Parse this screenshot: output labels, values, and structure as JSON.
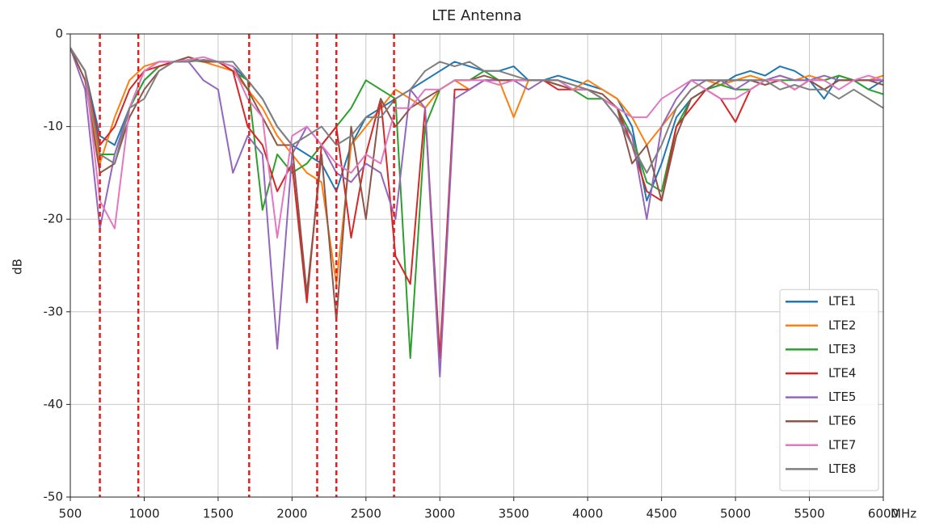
{
  "chart_data": {
    "type": "line",
    "title": "LTE Antenna",
    "xlabel": "MHz",
    "ylabel": "dB",
    "x": [
      500,
      600,
      700,
      800,
      900,
      1000,
      1100,
      1200,
      1300,
      1400,
      1500,
      1600,
      1700,
      1800,
      1900,
      2000,
      2100,
      2200,
      2300,
      2400,
      2500,
      2600,
      2700,
      2800,
      2900,
      3000,
      3100,
      3200,
      3300,
      3400,
      3500,
      3600,
      3700,
      3800,
      3900,
      4000,
      4100,
      4200,
      4300,
      4400,
      4500,
      4600,
      4700,
      4800,
      4900,
      5000,
      5100,
      5200,
      5300,
      5400,
      5500,
      5600,
      5700,
      5800,
      5900,
      6000
    ],
    "series": [
      {
        "name": "LTE1",
        "color": "#1f77b4",
        "values": [
          -1.5,
          -4,
          -11,
          -12,
          -8,
          -5,
          -3.5,
          -3,
          -3,
          -2.8,
          -3,
          -3.5,
          -5,
          -7,
          -10,
          -12,
          -13,
          -14,
          -17,
          -12,
          -9,
          -8,
          -7,
          -6,
          -5,
          -4,
          -3,
          -3.5,
          -4,
          -4,
          -3.5,
          -5,
          -5,
          -4.5,
          -5,
          -5.5,
          -6,
          -7,
          -10,
          -18,
          -14,
          -9,
          -7,
          -6,
          -5.5,
          -4.5,
          -4,
          -4.5,
          -3.5,
          -4,
          -5,
          -7,
          -4.5,
          -5,
          -6,
          -5
        ]
      },
      {
        "name": "LTE2",
        "color": "#ff7f0e",
        "values": [
          -1.5,
          -5,
          -14,
          -9,
          -5,
          -3.5,
          -3,
          -3,
          -2.8,
          -3,
          -3.5,
          -4,
          -6,
          -8,
          -11,
          -13,
          -15,
          -16,
          -27,
          -12,
          -10,
          -8,
          -6,
          -7,
          -8,
          -6,
          -5,
          -6,
          -5,
          -5,
          -9,
          -5,
          -5,
          -5.5,
          -6,
          -5,
          -6,
          -7,
          -9,
          -12,
          -10,
          -8,
          -6,
          -5,
          -5.5,
          -5,
          -4.5,
          -5,
          -4.5,
          -5,
          -4.5,
          -5,
          -4.5,
          -5,
          -5,
          -4.5
        ]
      },
      {
        "name": "LTE3",
        "color": "#2ca02c",
        "values": [
          -1.5,
          -4,
          -13,
          -13,
          -8,
          -5,
          -3.5,
          -3,
          -2.8,
          -3,
          -3,
          -4,
          -5,
          -19,
          -13,
          -15,
          -14,
          -12,
          -10,
          -8,
          -5,
          -6,
          -7,
          -35,
          -10,
          -6,
          -5,
          -5,
          -4,
          -5,
          -5,
          -5,
          -5,
          -5,
          -6,
          -7,
          -7,
          -8,
          -11,
          -16,
          -17,
          -10,
          -7,
          -6,
          -5.5,
          -6,
          -6,
          -5,
          -5,
          -5,
          -5,
          -5,
          -4.5,
          -5,
          -6,
          -6.5
        ]
      },
      {
        "name": "LTE4",
        "color": "#d62728",
        "values": [
          -1.5,
          -4,
          -12,
          -10,
          -6,
          -4,
          -3.5,
          -3,
          -2.5,
          -3,
          -3,
          -4,
          -10,
          -12,
          -17,
          -14,
          -29,
          -12,
          -10,
          -22,
          -13,
          -7,
          -24,
          -27,
          -8,
          -35,
          -6,
          -6,
          -5,
          -5,
          -5,
          -5,
          -5,
          -6,
          -6,
          -6,
          -7,
          -8,
          -12,
          -17,
          -18,
          -10,
          -8,
          -6,
          -7,
          -9.5,
          -6,
          -5,
          -5,
          -6,
          -5,
          -6,
          -5,
          -5,
          -5,
          -5
        ]
      },
      {
        "name": "LTE5",
        "color": "#9467bd",
        "values": [
          -1.5,
          -6,
          -21,
          -13,
          -8,
          -4,
          -3,
          -3,
          -3,
          -5,
          -6,
          -15,
          -11,
          -13,
          -34,
          -13,
          -10,
          -12,
          -15,
          -16,
          -14,
          -15,
          -20,
          -6,
          -8,
          -37,
          -7,
          -6,
          -5,
          -5,
          -5,
          -6,
          -5,
          -5,
          -6,
          -6,
          -7,
          -9,
          -11,
          -20,
          -10,
          -7,
          -5,
          -5,
          -5,
          -6,
          -5,
          -5,
          -4.5,
          -5,
          -5,
          -4.5,
          -5,
          -5,
          -5,
          -5
        ]
      },
      {
        "name": "LTE6",
        "color": "#8c564b",
        "values": [
          -1.5,
          -5,
          -15,
          -14,
          -9,
          -6,
          -4,
          -3,
          -2.5,
          -3,
          -3,
          -3.5,
          -6,
          -9,
          -12,
          -12,
          -28,
          -13,
          -31,
          -10,
          -20,
          -7,
          -10,
          -8,
          -7,
          -6,
          -5,
          -5,
          -4.5,
          -5,
          -5,
          -5,
          -5,
          -5.5,
          -6,
          -6,
          -6.5,
          -8,
          -14,
          -12,
          -18,
          -11,
          -7,
          -6,
          -5,
          -5,
          -5,
          -5.5,
          -5,
          -6,
          -5,
          -6,
          -5,
          -5,
          -5,
          -5.5
        ]
      },
      {
        "name": "LTE7",
        "color": "#e377c2",
        "values": [
          -1.5,
          -4,
          -18,
          -21,
          -8,
          -4,
          -3,
          -3,
          -2.8,
          -2.5,
          -3,
          -3.5,
          -7,
          -9,
          -22,
          -11,
          -10,
          -12,
          -14,
          -15,
          -13,
          -14,
          -8,
          -8,
          -6,
          -6,
          -5,
          -5,
          -5,
          -5.5,
          -5,
          -5,
          -5,
          -5,
          -6,
          -6,
          -7,
          -8,
          -9,
          -9,
          -7,
          -6,
          -5,
          -6,
          -7,
          -7,
          -6,
          -5,
          -5,
          -6,
          -5,
          -5,
          -6,
          -5,
          -4.5,
          -5
        ]
      },
      {
        "name": "LTE8",
        "color": "#7f7f7f",
        "values": [
          -1.5,
          -4,
          -13,
          -14,
          -8,
          -7,
          -4,
          -3,
          -3,
          -2.8,
          -3,
          -3,
          -5,
          -7,
          -10,
          -12,
          -11,
          -10,
          -12,
          -11,
          -9,
          -9,
          -7,
          -6,
          -4,
          -3,
          -3.5,
          -3,
          -4,
          -4,
          -4.5,
          -5,
          -5,
          -5,
          -5.5,
          -6,
          -7,
          -9,
          -12,
          -15,
          -12,
          -8,
          -6,
          -5,
          -5,
          -5,
          -5,
          -5,
          -6,
          -5.5,
          -6,
          -6,
          -7,
          -6,
          -7,
          -8
        ]
      }
    ],
    "vlines": [
      700,
      960,
      1710,
      2170,
      2300,
      2690
    ],
    "vline_color": "#e02020",
    "xlim": [
      500,
      6000
    ],
    "xticks": [
      500,
      1000,
      1500,
      2000,
      2500,
      3000,
      3500,
      4000,
      4500,
      5000,
      5500,
      6000
    ],
    "ylim": [
      -50,
      0
    ],
    "yticks": [
      -50,
      -40,
      -30,
      -20,
      -10,
      0
    ],
    "grid": true,
    "legend": "lower right"
  }
}
